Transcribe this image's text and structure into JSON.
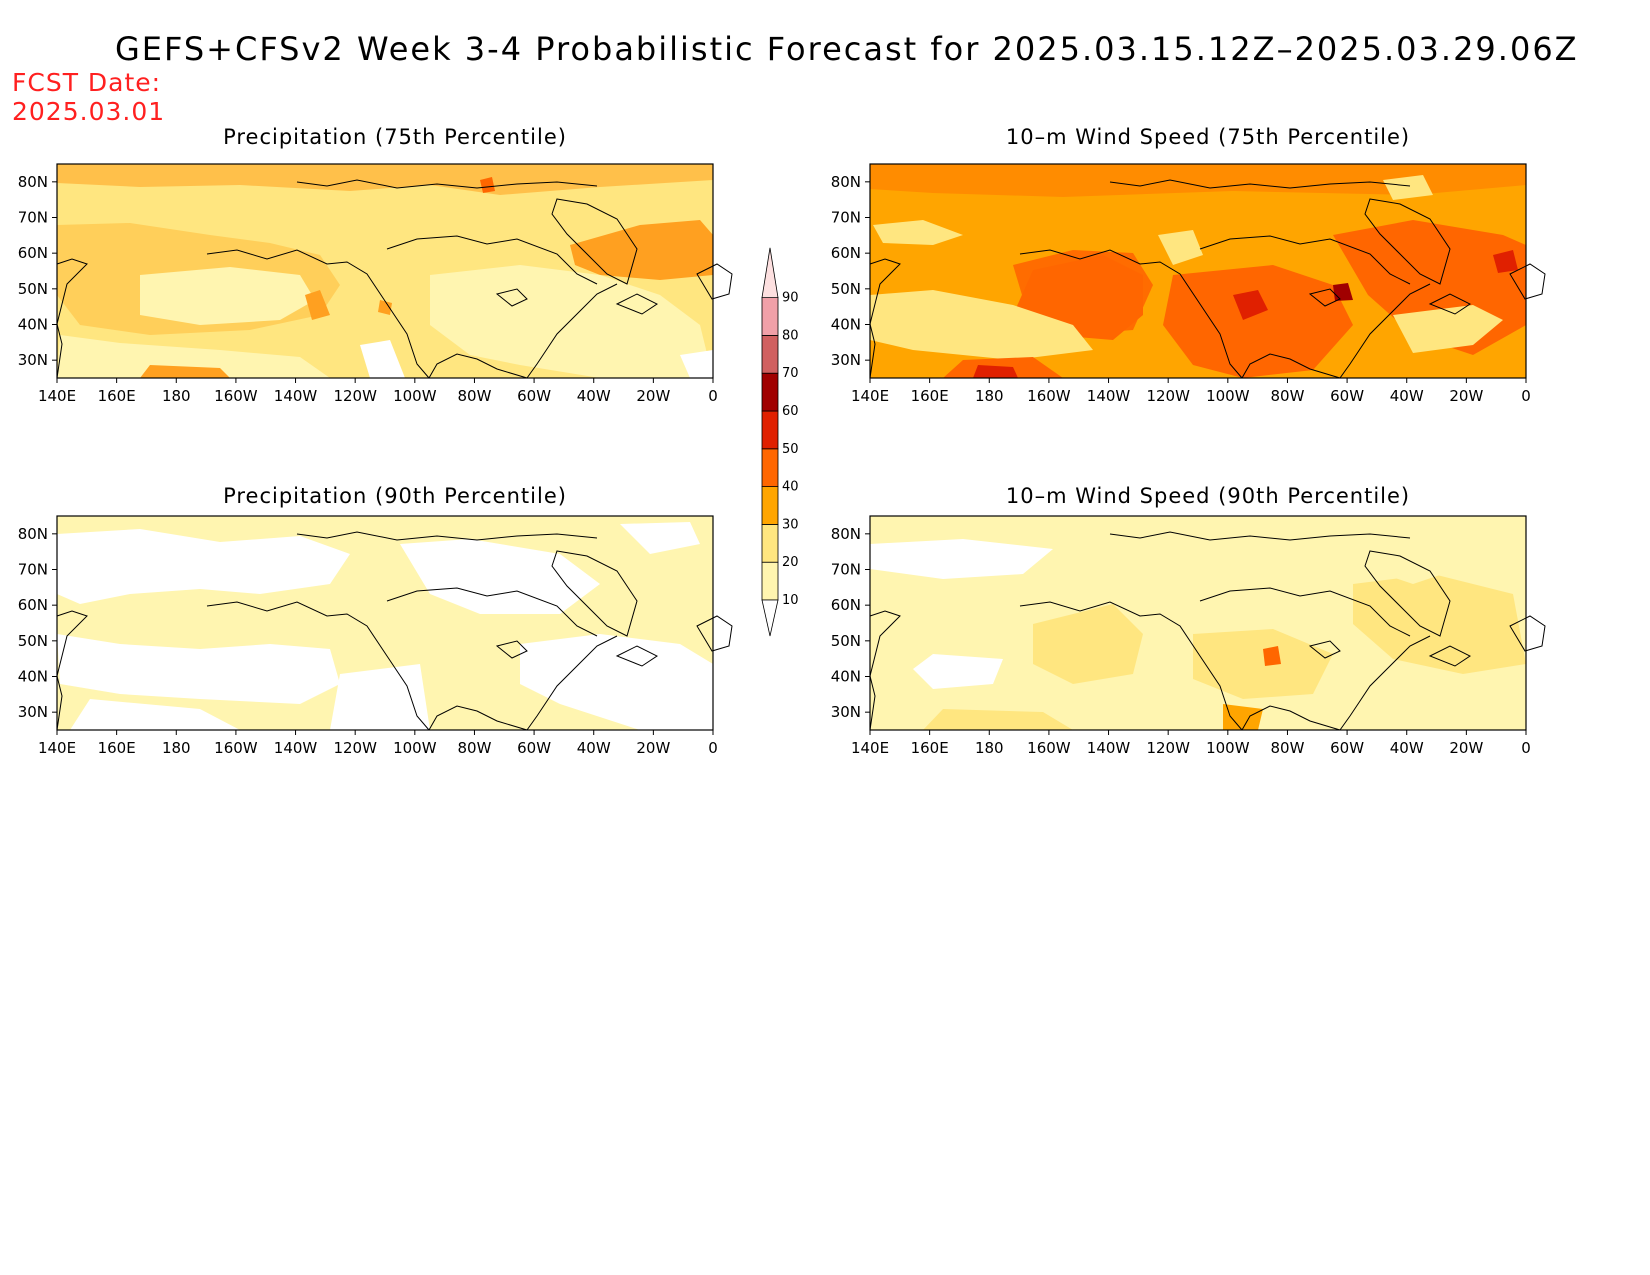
{
  "title": "GEFS+CFSv2 Week 3-4 Probabilistic Forecast for 2025.03.15.12Z–2025.03.29.06Z",
  "forecast_date": {
    "label": "FCST Date:",
    "value": "2025.03.01"
  },
  "map_axes": {
    "lon_ticks": [
      "140E",
      "160E",
      "180",
      "160W",
      "140W",
      "120W",
      "100W",
      "80W",
      "60W",
      "40W",
      "20W",
      "0"
    ],
    "lat_ticks": [
      "80N",
      "70N",
      "60N",
      "50N",
      "40N",
      "30N"
    ],
    "lon_range_deg_east": [
      140,
      360
    ],
    "lat_range": [
      25,
      85
    ]
  },
  "legend": {
    "levels": [
      "10",
      "20",
      "30",
      "40",
      "50",
      "60",
      "70",
      "80",
      "90"
    ],
    "bins": [
      {
        "range": "10-20",
        "color": "#fff5b0"
      },
      {
        "range": "20-30",
        "color": "#ffe680"
      },
      {
        "range": "30-40",
        "color": "#ffa500"
      },
      {
        "range": "40-50",
        "color": "#ff6600"
      },
      {
        "range": "50-60",
        "color": "#e02000"
      },
      {
        "range": "60-70",
        "color": "#a00000"
      },
      {
        "range": "70-80",
        "color": "#d06060"
      },
      {
        "range": "80-90",
        "color": "#f0a0a8"
      },
      {
        "range": ">90",
        "color": "#fde0e0"
      }
    ]
  },
  "panels": [
    {
      "title": "Precipitation (75th Percentile)",
      "base_color": "#ffe680"
    },
    {
      "title": "10–m Wind Speed (75th Percentile)",
      "base_color": "#ffa500"
    },
    {
      "title": "Precipitation (90th Percentile)",
      "base_color": "#fff5b0"
    },
    {
      "title": "10–m Wind Speed (90th Percentile)",
      "base_color": "#fff5b0"
    }
  ]
}
